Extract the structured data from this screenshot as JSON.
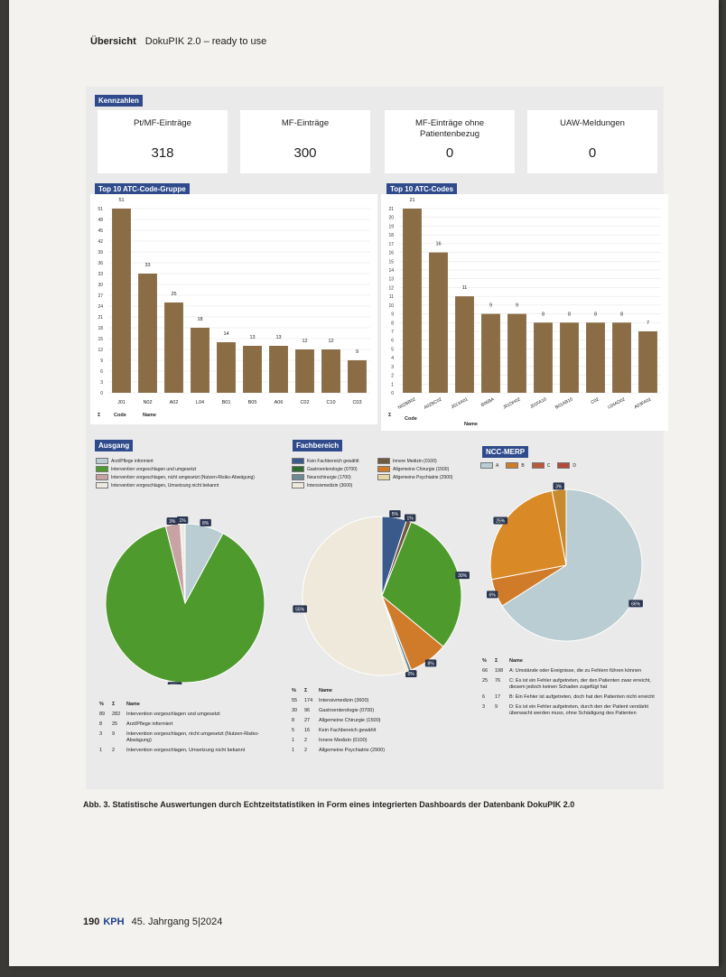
{
  "header": {
    "section": "Übersicht",
    "title": "DokuPIK 2.0 – ready to use"
  },
  "kennzahlen": {
    "label": "Kennzahlen",
    "cards": [
      {
        "title": "Pt/MF-Einträge",
        "value": "318"
      },
      {
        "title": "MF-Einträge",
        "value": "300"
      },
      {
        "title": "MF-Einträge ohne Patientenbezug",
        "value": "0"
      },
      {
        "title": "UAW-Meldungen",
        "value": "0"
      }
    ]
  },
  "chart_data": [
    {
      "type": "bar",
      "title": "Top 10 ATC-Code-Gruppe",
      "categories": [
        "J01",
        "N02",
        "A02",
        "L04",
        "B01",
        "B05",
        "A06",
        "C02",
        "C10",
        "C03"
      ],
      "values": [
        51,
        33,
        25,
        18,
        14,
        13,
        13,
        12,
        12,
        9
      ],
      "yticks": [
        "0",
        "3",
        "6",
        "9",
        "12",
        "15",
        "18",
        "21",
        "24",
        "27",
        "30",
        "33",
        "36",
        "39",
        "42",
        "45",
        "48",
        "51"
      ],
      "ylim": [
        0,
        51
      ],
      "color": "#8a6d45",
      "footer": [
        "Σ",
        "Code",
        "Name"
      ]
    },
    {
      "type": "bar",
      "title": "Top 10 ATC-Codes",
      "categories": [
        "N02BB02",
        "A02BC02",
        "J01XA01",
        "B05BA",
        "J01DH02",
        "J01FA10",
        "B01AB10",
        "C02",
        "L04AD02",
        "A03FA01"
      ],
      "values": [
        21,
        16,
        11,
        9,
        9,
        8,
        8,
        8,
        8,
        7
      ],
      "yticks": [
        "0",
        "1",
        "2",
        "3",
        "4",
        "5",
        "6",
        "7",
        "8",
        "9",
        "10",
        "11",
        "12",
        "13",
        "14",
        "15",
        "16",
        "17",
        "18",
        "19",
        "20",
        "21"
      ],
      "ylim": [
        0,
        21
      ],
      "color": "#8a6d45",
      "footer": [
        "Σ",
        "Code",
        "Name"
      ]
    },
    {
      "type": "pie",
      "title": "Ausgang",
      "legend": [
        {
          "label": "Arzt/Pflege informiert",
          "color": "#b9cdd2"
        },
        {
          "label": "Intervention vorgeschlagen und umgesetzt",
          "color": "#4f9a2d"
        },
        {
          "label": "Intervention vorgeschlagen, nicht umgesetzt (Nutzen-Risiko-Abwägung)",
          "color": "#c9a3a3"
        },
        {
          "label": "Intervention vorgeschlagen, Umsetzung nicht bekannt",
          "color": "#eeeae2"
        }
      ],
      "slices": [
        {
          "pct": 8,
          "label": "8%",
          "color": "#b9cdd2"
        },
        {
          "pct": 89,
          "label": "89%",
          "color": "#4f9a2d"
        },
        {
          "pct": 3,
          "label": "3%",
          "color": "#c9a3a3"
        },
        {
          "pct": 1,
          "label": "1%",
          "color": "#eeeae2"
        }
      ],
      "table": {
        "headers": [
          "%",
          "Σ",
          "Name"
        ],
        "rows": [
          [
            "89",
            "282",
            "Intervention vorgeschlagen und umgesetzt"
          ],
          [
            "8",
            "25",
            "Arzt/Pflege informiert"
          ],
          [
            "3",
            "9",
            "Intervention vorgeschlagen, nicht umgesetzt (Nutzen-Risiko-Abwägung)"
          ],
          [
            "1",
            "2",
            "Intervention vorgeschlagen, Umsetzung nicht bekannt"
          ]
        ]
      }
    },
    {
      "type": "pie",
      "title": "Fachbereich",
      "legend": [
        {
          "label": "Kein Fachbereich gewählt",
          "color": "#3a5a8c"
        },
        {
          "label": "Innere Medizin (0100)",
          "color": "#6e5a3e"
        },
        {
          "label": "Gastroenterologie (0700)",
          "color": "#2f6b2f"
        },
        {
          "label": "Allgemeine Chirurgie (1500)",
          "color": "#d07b2a"
        },
        {
          "label": "Neurochirurgie (1700)",
          "color": "#6b8a94"
        },
        {
          "label": "Allgemeine Psychiatrie (2900)",
          "color": "#e4d7a4"
        },
        {
          "label": "Intensivmedizin (3600)",
          "color": "#efe9dc"
        }
      ],
      "slices": [
        {
          "pct": 5,
          "label": "5%",
          "color": "#3a5a8c"
        },
        {
          "pct": 1,
          "label": "1%",
          "color": "#6e5a3e"
        },
        {
          "pct": 30,
          "label": "30%",
          "color": "#4f9a2d"
        },
        {
          "pct": 8,
          "label": "8%",
          "color": "#d07b2a"
        },
        {
          "pct": 0.6,
          "label": "0%",
          "color": "#6b8a94"
        },
        {
          "pct": 0.4,
          "label": "",
          "color": "#e4d7a4"
        },
        {
          "pct": 55,
          "label": "55%",
          "color": "#efe9dc"
        }
      ],
      "table": {
        "headers": [
          "%",
          "Σ",
          "Name"
        ],
        "rows": [
          [
            "55",
            "174",
            "Intensivmedizin (3600)"
          ],
          [
            "30",
            "96",
            "Gastroenterologie (0700)"
          ],
          [
            "8",
            "27",
            "Allgemeine Chirurgie (1500)"
          ],
          [
            "5",
            "16",
            "Kein Fachbereich gewählt"
          ],
          [
            "1",
            "2",
            "Innere Medizin (0100)"
          ],
          [
            "1",
            "2",
            "Allgemeine Psychiatrie (2900)"
          ]
        ]
      }
    },
    {
      "type": "pie",
      "title": "NCC-MERP",
      "legend": [
        {
          "label": "A",
          "color": "#b9cdd2"
        },
        {
          "label": "B",
          "color": "#d07b2a"
        },
        {
          "label": "C",
          "color": "#b85a3a"
        },
        {
          "label": "D",
          "color": "#b24a3a"
        }
      ],
      "slices": [
        {
          "pct": 66,
          "label": "66%",
          "color": "#b9cdd2"
        },
        {
          "pct": 6,
          "label": "6%",
          "color": "#d07b2a"
        },
        {
          "pct": 25,
          "label": "25%",
          "color": "#d98a26"
        },
        {
          "pct": 3,
          "label": "3%",
          "color": "#c88a2c"
        }
      ],
      "table": {
        "headers": [
          "%",
          "Σ",
          "Name"
        ],
        "rows": [
          [
            "66",
            "198",
            "A: Umstände oder Ereignisse, die zu Fehlern führen können"
          ],
          [
            "25",
            "76",
            "C: Es ist ein Fehler aufgetreten, der den Patienten zwar erreicht, diesem jedoch keinen Schaden zugefügt hat"
          ],
          [
            "6",
            "17",
            "B: Ein Fehler ist aufgetreten, doch hat den Patienten nicht erreicht"
          ],
          [
            "3",
            "9",
            "D: Es ist ein Fehler aufgetreten, durch den der Patient verstärkt überwacht werden muss, ohne Schädigung des Patienten"
          ]
        ]
      }
    }
  ],
  "caption": "Abb. 3. Statistische Auswertungen durch Echtzeitstatistiken in Form eines integrierten Dashboards der Datenbank DokuPIK 2.0",
  "footer": {
    "page": "190",
    "journal": "KPH",
    "issue": "45. Jahrgang 5|2024"
  }
}
